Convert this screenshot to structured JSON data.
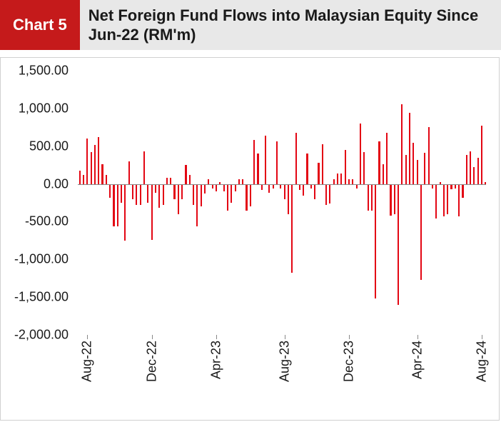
{
  "header": {
    "badge": "Chart 5",
    "badge_bg": "#c51a1b",
    "badge_fg": "#ffffff",
    "title": "Net Foreign Fund Flows into Malaysian Equity Since Jun-22 (RM'm)",
    "title_bg": "#e8e8e8",
    "title_fg": "#1a1a1a",
    "badge_fontsize": 22,
    "title_fontsize": 22
  },
  "chart": {
    "type": "bar",
    "ylim": [
      -2000,
      1500
    ],
    "ytick_step": 500,
    "yticks": [
      1500,
      1000,
      500,
      0,
      -500,
      -1000,
      -1500,
      -2000
    ],
    "ytick_labels": [
      "1,500.00",
      "1,000.00",
      "500.00",
      "0.00",
      "-500.00",
      "-1,000.00",
      "-1,500.00",
      "-2,000.00"
    ],
    "bar_color": "#e30613",
    "zero_line_color": "#888888",
    "plot_border_color": "#d0d0d0",
    "background_color": "#ffffff",
    "label_fontsize": 18,
    "label_color": "#1a1a1a",
    "bar_width_ratio": 0.4,
    "x_tick_labels": [
      {
        "index": 2,
        "label": "Aug-22"
      },
      {
        "index": 19,
        "label": "Dec-22"
      },
      {
        "index": 36,
        "label": "Apr-23"
      },
      {
        "index": 54,
        "label": "Aug-23"
      },
      {
        "index": 71,
        "label": "Dec-23"
      },
      {
        "index": 89,
        "label": "Apr-24"
      },
      {
        "index": 106,
        "label": "Aug-24"
      }
    ],
    "values": [
      180,
      120,
      600,
      420,
      520,
      620,
      260,
      120,
      -180,
      -560,
      -560,
      -250,
      -750,
      300,
      -200,
      -280,
      -280,
      430,
      -250,
      -740,
      -120,
      -320,
      -280,
      80,
      80,
      -200,
      -400,
      -200,
      250,
      120,
      -280,
      -560,
      -300,
      -130,
      60,
      -60,
      -100,
      20,
      -100,
      -350,
      -250,
      -100,
      60,
      60,
      -350,
      -300,
      580,
      400,
      -80,
      640,
      -120,
      -60,
      560,
      -60,
      -200,
      -400,
      -1180,
      680,
      -80,
      -160,
      400,
      -60,
      -200,
      280,
      530,
      -280,
      -260,
      60,
      140,
      140,
      450,
      60,
      60,
      -60,
      800,
      420,
      -350,
      -350,
      -1520,
      560,
      260,
      680,
      -420,
      -400,
      -1600,
      1060,
      380,
      940,
      540,
      320,
      -1270,
      410,
      750,
      -60,
      -460,
      20,
      -430,
      -400,
      -70,
      -60,
      -430,
      -180,
      380,
      430,
      220,
      350,
      770,
      20
    ]
  }
}
